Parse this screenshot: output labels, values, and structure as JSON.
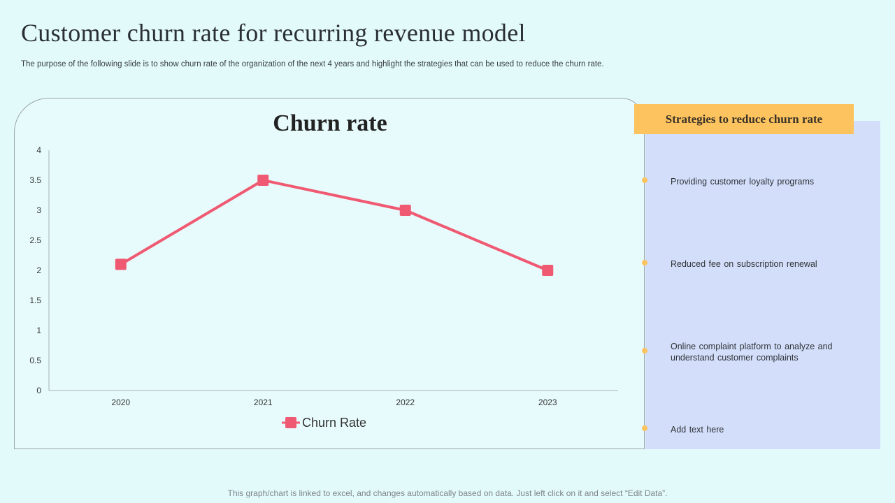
{
  "slide": {
    "title": "Customer churn rate for recurring revenue model",
    "subtitle": "The purpose of the following slide is to show churn rate of the organization of the next 4 years and highlight the strategies that can be used to reduce the churn rate.",
    "footer": "This graph/chart is linked to excel, and changes automatically based on data. Just left click on it and select “Edit Data”."
  },
  "panel": {
    "header": "Strategies to reduce churn rate",
    "items": [
      "Providing  customer loyalty programs",
      "Reduced  fee  on  subscription renewal",
      "Online  complaint  platform  to analyze  and understand  customer complaints",
      "Add text here"
    ]
  },
  "colors": {
    "series": "#ef5a72",
    "accent": "#fcc35e",
    "panel": "#d3defa"
  },
  "chart_data": {
    "type": "line",
    "title": "Churn rate",
    "categories": [
      "2020",
      "2021",
      "2022",
      "2023"
    ],
    "series": [
      {
        "name": "Churn Rate",
        "values": [
          2.1,
          3.5,
          3.0,
          2.0
        ]
      }
    ],
    "ylim": [
      0,
      4
    ],
    "yticks": [
      "0",
      "0.5",
      "1",
      "1.5",
      "2",
      "2.5",
      "3",
      "3.5",
      "4"
    ],
    "legend": "bottom",
    "grid": false
  }
}
